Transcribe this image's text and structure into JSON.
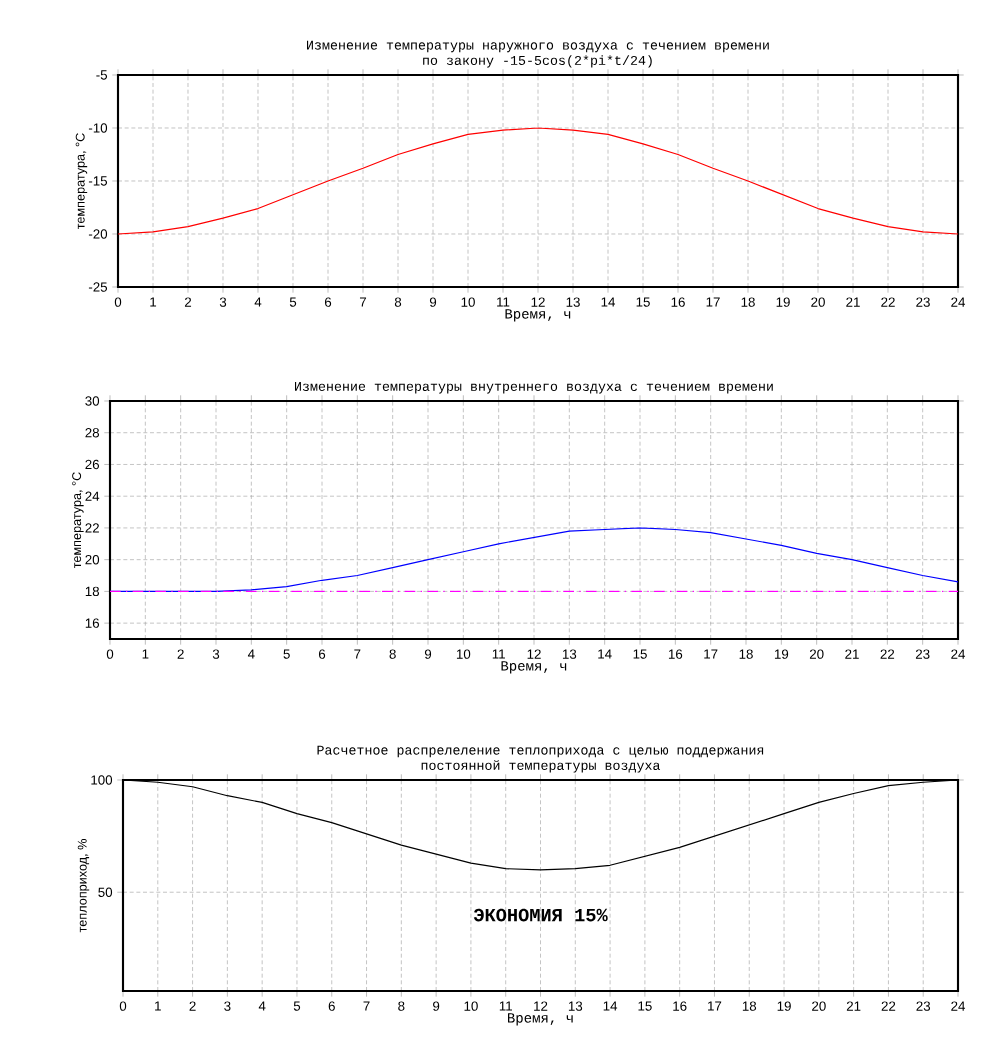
{
  "chart_data": [
    {
      "type": "line",
      "title": "Изменение температуры наружного воздуха с течением времени",
      "subtitle": "по закону -15-5cos(2*pi*t/24)",
      "xlabel": "Время, ч",
      "ylabel": "температура, °C",
      "x": [
        0,
        1,
        2,
        3,
        4,
        5,
        6,
        7,
        8,
        9,
        10,
        11,
        12,
        13,
        14,
        15,
        16,
        17,
        18,
        19,
        20,
        21,
        22,
        23,
        24
      ],
      "series": [
        {
          "color": "#ff0000",
          "values": [
            -20,
            -19.8,
            -19.3,
            -18.5,
            -17.6,
            -16.3,
            -15,
            -13.8,
            -12.5,
            -11.5,
            -10.6,
            -10.2,
            -10,
            -10.2,
            -10.6,
            -11.5,
            -12.5,
            -13.8,
            -15,
            -16.3,
            -17.6,
            -18.5,
            -19.3,
            -19.8,
            -20
          ]
        }
      ],
      "xlim": [
        0,
        24
      ],
      "xticks": [
        0,
        1,
        2,
        3,
        4,
        5,
        6,
        7,
        8,
        9,
        10,
        11,
        12,
        13,
        14,
        15,
        16,
        17,
        18,
        19,
        20,
        21,
        22,
        23,
        24
      ],
      "ylim": [
        -25,
        -5
      ],
      "yticks": [
        -25,
        -20,
        -15,
        -10,
        -5
      ],
      "grid": true,
      "marker": "none"
    },
    {
      "type": "line",
      "title": "Изменение температуры внутреннего воздуха с течением времени",
      "xlabel": "Время, ч",
      "ylabel": "температура, °C",
      "x": [
        0,
        1,
        2,
        3,
        4,
        5,
        6,
        7,
        8,
        9,
        10,
        11,
        12,
        13,
        14,
        15,
        16,
        17,
        18,
        19,
        20,
        21,
        22,
        23,
        24
      ],
      "series": [
        {
          "color": "#0000ff",
          "values": [
            18,
            18,
            18,
            18,
            18.1,
            18.3,
            18.7,
            19,
            19.5,
            20,
            20.5,
            21,
            21.4,
            21.8,
            21.9,
            22,
            21.9,
            21.7,
            21.3,
            20.9,
            20.4,
            20,
            19.5,
            19,
            18.6
          ]
        }
      ],
      "ref_lines": [
        {
          "axis": "y",
          "value": 18,
          "color": "#ff00ff",
          "line_style": "dashed"
        }
      ],
      "xlim": [
        0,
        24
      ],
      "xticks": [
        0,
        1,
        2,
        3,
        4,
        5,
        6,
        7,
        8,
        9,
        10,
        11,
        12,
        13,
        14,
        15,
        16,
        17,
        18,
        19,
        20,
        21,
        22,
        23,
        24
      ],
      "ylim": [
        15,
        30
      ],
      "yticks": [
        16,
        18,
        20,
        22,
        24,
        26,
        28,
        30
      ],
      "grid": true,
      "marker": "none"
    },
    {
      "type": "line",
      "title": "Расчетное распрелеление теплоприхода с целью поддержания",
      "subtitle": "постоянной температуры воздуха",
      "xlabel": "Время, ч",
      "ylabel": "теплоприход, %",
      "x": [
        0,
        1,
        2,
        3,
        4,
        5,
        6,
        7,
        8,
        9,
        10,
        11,
        12,
        13,
        14,
        15,
        16,
        17,
        18,
        19,
        20,
        21,
        22,
        23,
        24
      ],
      "series": [
        {
          "color": "#000000",
          "values": [
            100,
            99,
            97,
            93,
            90,
            85,
            81,
            76,
            71,
            67,
            63,
            60.5,
            60,
            60.5,
            62,
            66,
            70,
            75,
            80,
            85,
            90,
            94,
            97.5,
            99,
            100
          ]
        }
      ],
      "annotations": [
        "ЭКОНОМИЯ 15%"
      ],
      "xlim": [
        0,
        24
      ],
      "xticks": [
        0,
        1,
        2,
        3,
        4,
        5,
        6,
        7,
        8,
        9,
        10,
        11,
        12,
        13,
        14,
        15,
        16,
        17,
        18,
        19,
        20,
        21,
        22,
        23,
        24
      ],
      "ylim": [
        6,
        100
      ],
      "yticks": [
        50,
        100
      ],
      "grid": true,
      "marker": "none"
    }
  ]
}
